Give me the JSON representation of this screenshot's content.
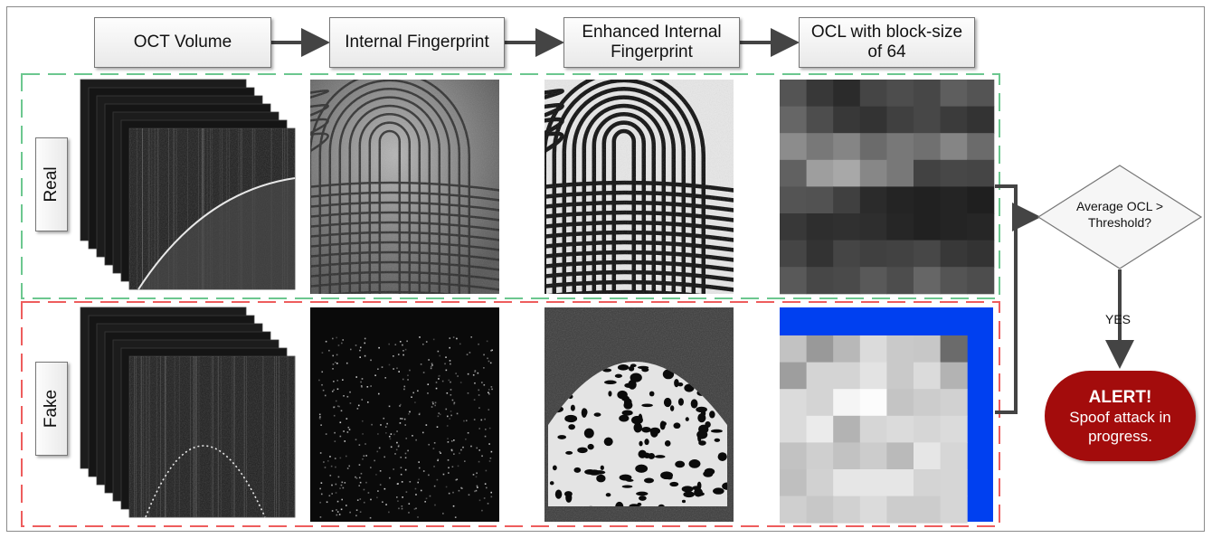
{
  "pipeline": {
    "steps": [
      {
        "label": "OCT Volume"
      },
      {
        "label": "Internal Fingerprint"
      },
      {
        "label": "Enhanced Internal\nFingerprint"
      },
      {
        "label": "OCL with block-size\nof 64"
      }
    ]
  },
  "rows": {
    "real": {
      "label": "Real",
      "color": "#6cc78f"
    },
    "fake": {
      "label": "Fake",
      "color": "#ee5d5d"
    }
  },
  "ocl_blocks": {
    "real": [
      [
        0.33,
        0.22,
        0.17,
        0.27,
        0.3,
        0.28,
        0.37,
        0.33
      ],
      [
        0.4,
        0.3,
        0.22,
        0.2,
        0.25,
        0.28,
        0.23,
        0.2
      ],
      [
        0.55,
        0.47,
        0.52,
        0.42,
        0.47,
        0.44,
        0.52,
        0.42
      ],
      [
        0.38,
        0.62,
        0.66,
        0.53,
        0.47,
        0.26,
        0.28,
        0.27
      ],
      [
        0.33,
        0.32,
        0.25,
        0.17,
        0.14,
        0.13,
        0.14,
        0.12
      ],
      [
        0.22,
        0.18,
        0.19,
        0.18,
        0.15,
        0.13,
        0.14,
        0.15
      ],
      [
        0.27,
        0.2,
        0.27,
        0.25,
        0.26,
        0.28,
        0.22,
        0.2
      ],
      [
        0.35,
        0.28,
        0.29,
        0.35,
        0.3,
        0.4,
        0.33,
        0.3
      ]
    ],
    "fake": [
      [
        0.76,
        0.6,
        0.72,
        0.86,
        0.79,
        0.78,
        0.42
      ],
      [
        0.62,
        0.83,
        0.83,
        0.89,
        0.79,
        0.86,
        0.7
      ],
      [
        0.86,
        0.83,
        0.96,
        0.99,
        0.77,
        0.8,
        0.82
      ],
      [
        0.86,
        0.92,
        0.7,
        0.84,
        0.86,
        0.84,
        0.86
      ],
      [
        0.76,
        0.81,
        0.76,
        0.8,
        0.73,
        0.9,
        0.84
      ],
      [
        0.75,
        0.82,
        0.9,
        0.9,
        0.9,
        0.83,
        0.84
      ],
      [
        0.81,
        0.78,
        0.82,
        0.86,
        0.8,
        0.8,
        0.84
      ]
    ],
    "fake_border_color": "#0040f0"
  },
  "decision": {
    "text": "Average OCL >\nThreshold?",
    "yes_label": "YES"
  },
  "alert": {
    "title": "ALERT!",
    "message": "Spoof attack in\nprogress.",
    "color": "#a30c0c"
  }
}
